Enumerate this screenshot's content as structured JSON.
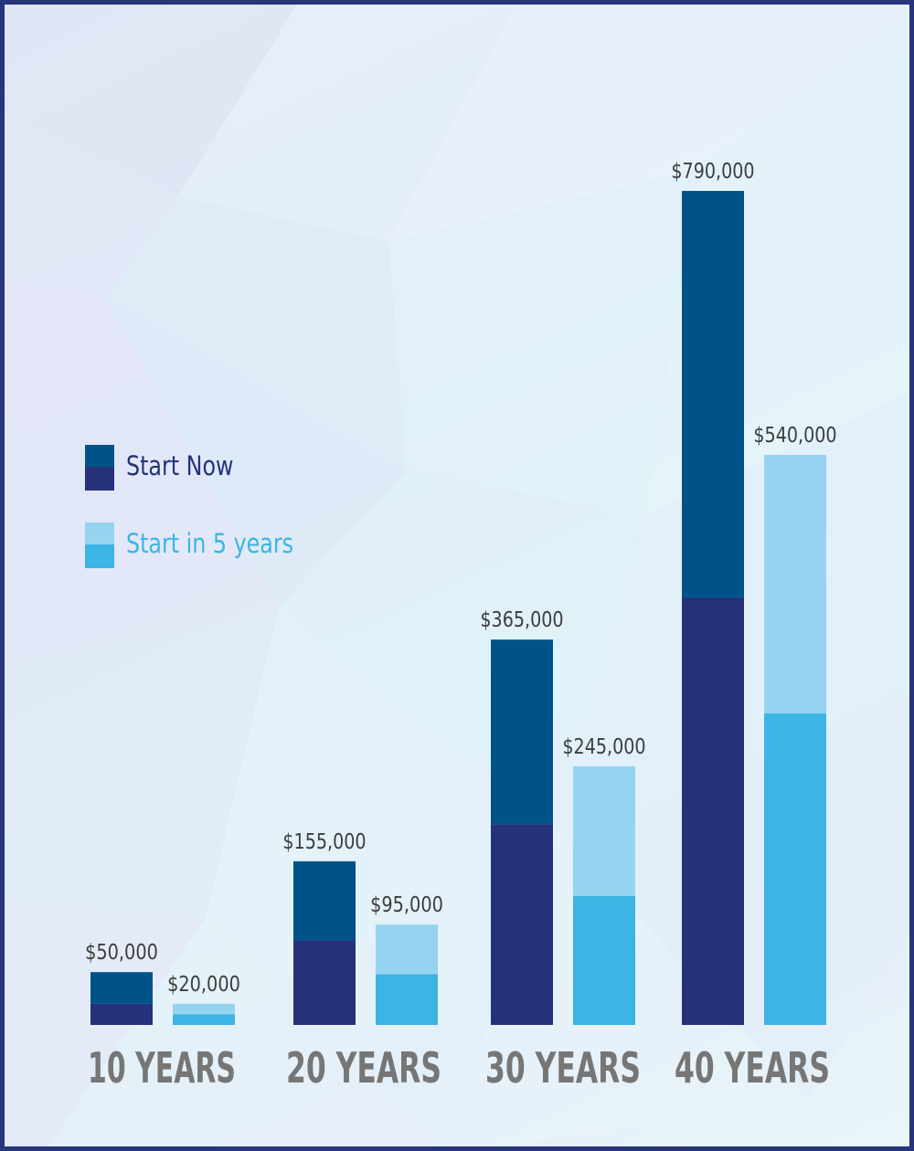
{
  "chart_data": {
    "type": "bar",
    "stacked_segments": true,
    "categories": [
      "10 YEARS",
      "20 YEARS",
      "30 YEARS",
      "40 YEARS"
    ],
    "series": [
      {
        "name": "Start Now",
        "values": [
          50000,
          155000,
          365000,
          790000
        ],
        "value_labels": [
          "$50,000",
          "$155,000",
          "$365,000",
          "$790,000"
        ],
        "lower_segment": [
          20000,
          80000,
          190000,
          405000
        ],
        "color_top": "#005388",
        "color_bottom": "#25327a"
      },
      {
        "name": "Start in 5 years",
        "values": [
          20000,
          95000,
          245000,
          540000
        ],
        "value_labels": [
          "$20,000",
          "$95,000",
          "$245,000",
          "$540,000"
        ],
        "lower_segment": [
          10000,
          48000,
          122000,
          295000
        ],
        "color_top": "#95d4f1",
        "color_bottom": "#3cb4e4"
      }
    ],
    "ylim": [
      0,
      790000
    ],
    "grid": false,
    "legend_position": "left"
  },
  "colors": {
    "frame_border": "#27357a",
    "category_label": "#767676",
    "value_label": "#3d3d3d",
    "start_now_label": "#25327a",
    "start_later_label": "#3cb4e4"
  }
}
